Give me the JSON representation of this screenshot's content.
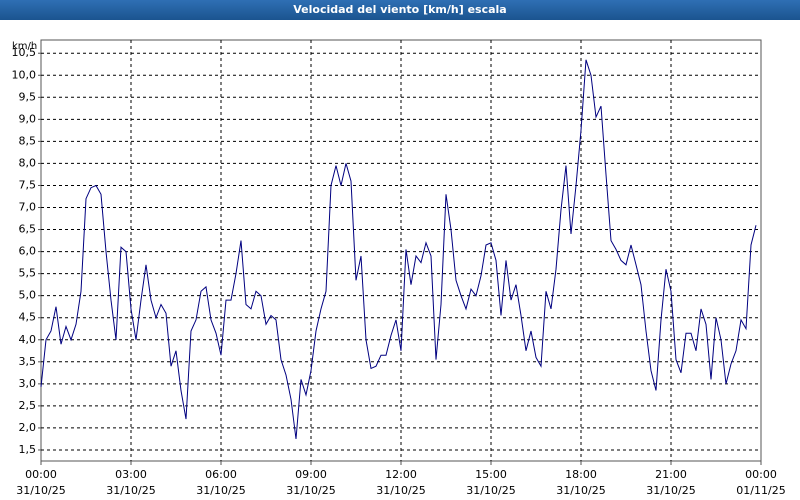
{
  "chart_data": {
    "type": "line",
    "title": "Velocidad del viento [km/h] escala",
    "y_label": "km/h",
    "xlim": [
      0,
      1440
    ],
    "xticks": [
      {
        "value": 0,
        "label": "00:00"
      },
      {
        "value": 180,
        "label": "03:00"
      },
      {
        "value": 360,
        "label": "06:00"
      },
      {
        "value": 540,
        "label": "09:00"
      },
      {
        "value": 720,
        "label": "12:00"
      },
      {
        "value": 900,
        "label": "15:00"
      },
      {
        "value": 1080,
        "label": "18:00"
      },
      {
        "value": 1260,
        "label": "21:00"
      },
      {
        "value": 1440,
        "label": "00:00"
      }
    ],
    "xtick_dates": [
      "31/10/25",
      "31/10/25",
      "31/10/25",
      "31/10/25",
      "31/10/25",
      "31/10/25",
      "31/10/25",
      "31/10/25",
      "01/11/25"
    ],
    "ylim": [
      1.25,
      10.8
    ],
    "yticks": [
      {
        "value": 1.5,
        "label": "1,5"
      },
      {
        "value": 2,
        "label": "2,0"
      },
      {
        "value": 2.5,
        "label": "2,5"
      },
      {
        "value": 3,
        "label": "3,0"
      },
      {
        "value": 3.5,
        "label": "3,5"
      },
      {
        "value": 4,
        "label": "4,0"
      },
      {
        "value": 4.5,
        "label": "4,5"
      },
      {
        "value": 5,
        "label": "5,0"
      },
      {
        "value": 5.5,
        "label": "5,5"
      },
      {
        "value": 6,
        "label": "6,0"
      },
      {
        "value": 6.5,
        "label": "6,5"
      },
      {
        "value": 7,
        "label": "7,0"
      },
      {
        "value": 7.5,
        "label": "7,5"
      },
      {
        "value": 8,
        "label": "8,0"
      },
      {
        "value": 8.5,
        "label": "8,5"
      },
      {
        "value": 9,
        "label": "9,0"
      },
      {
        "value": 9.5,
        "label": "9,5"
      },
      {
        "value": 10,
        "label": "10,0"
      },
      {
        "value": 10.5,
        "label": "10,5"
      }
    ],
    "grid": true,
    "color": "#000080",
    "x": [
      0,
      10,
      20,
      30,
      40,
      50,
      60,
      70,
      80,
      90,
      100,
      110,
      120,
      130,
      140,
      150,
      160,
      170,
      180,
      190,
      200,
      210,
      220,
      230,
      240,
      250,
      260,
      270,
      280,
      290,
      300,
      310,
      320,
      330,
      340,
      350,
      360,
      370,
      380,
      390,
      400,
      410,
      420,
      430,
      440,
      450,
      460,
      470,
      480,
      490,
      500,
      510,
      520,
      530,
      540,
      550,
      560,
      570,
      580,
      590,
      600,
      610,
      620,
      630,
      640,
      650,
      660,
      670,
      680,
      690,
      700,
      710,
      720,
      730,
      740,
      750,
      760,
      770,
      780,
      790,
      800,
      810,
      820,
      830,
      840,
      850,
      860,
      870,
      880,
      890,
      900,
      910,
      920,
      930,
      940,
      950,
      960,
      970,
      980,
      990,
      1000,
      1010,
      1020,
      1030,
      1040,
      1050,
      1060,
      1070,
      1080,
      1090,
      1100,
      1110,
      1120,
      1130,
      1140,
      1150,
      1160,
      1170,
      1180,
      1190,
      1200,
      1210,
      1220,
      1230,
      1240,
      1250,
      1260,
      1270,
      1280,
      1290,
      1300,
      1310,
      1320,
      1330,
      1340,
      1350,
      1360,
      1370,
      1380,
      1390,
      1400,
      1410,
      1420,
      1430
    ],
    "values": [
      2.93,
      4.0,
      4.2,
      4.75,
      3.9,
      4.3,
      4.0,
      4.35,
      5.1,
      7.2,
      7.45,
      7.5,
      7.3,
      6.0,
      4.9,
      4.0,
      6.1,
      6.0,
      4.7,
      4.0,
      4.9,
      5.7,
      4.9,
      4.5,
      4.8,
      4.6,
      3.4,
      3.75,
      2.85,
      2.2,
      4.2,
      4.45,
      5.1,
      5.2,
      4.45,
      4.15,
      3.65,
      4.9,
      4.9,
      5.5,
      6.25,
      4.8,
      4.7,
      5.1,
      5.0,
      4.35,
      4.55,
      4.45,
      3.55,
      3.2,
      2.65,
      1.75,
      3.1,
      2.75,
      3.3,
      4.2,
      4.7,
      5.1,
      7.5,
      7.95,
      7.5,
      8.0,
      7.6,
      5.35,
      5.9,
      4.0,
      3.35,
      3.4,
      3.65,
      3.65,
      4.1,
      4.45,
      3.75,
      6.05,
      5.25,
      5.9,
      5.75,
      6.2,
      5.9,
      3.55,
      4.8,
      7.3,
      6.5,
      5.35,
      5.0,
      4.7,
      5.15,
      5.0,
      5.45,
      6.15,
      6.2,
      5.8,
      4.55,
      5.8,
      4.9,
      5.25,
      4.55,
      3.75,
      4.2,
      3.6,
      3.4,
      5.1,
      4.7,
      5.6,
      6.95,
      7.95,
      6.4,
      7.5,
      8.75,
      10.35,
      10.0,
      9.05,
      9.3,
      7.75,
      6.25,
      6.05,
      5.8,
      5.7,
      6.15,
      5.7,
      5.25,
      4.2,
      3.3,
      2.85,
      4.45,
      5.6,
      5.1,
      3.55,
      3.25,
      4.15,
      4.15,
      3.75,
      4.7,
      4.35,
      3.1,
      4.5,
      4.0,
      3.0,
      3.45,
      3.75,
      4.45,
      4.25,
      6.15,
      6.6
    ]
  }
}
